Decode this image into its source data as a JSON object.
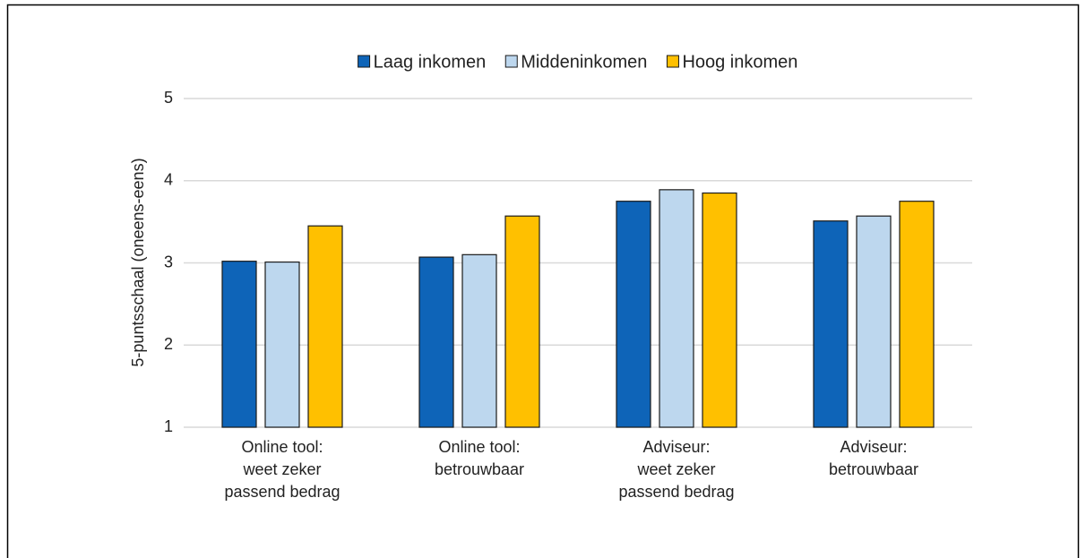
{
  "chart_data": {
    "type": "bar",
    "categories": [
      "Online tool:\nweet zeker\npassend bedrag",
      "Online tool:\nbetrouwbaar",
      "Adviseur:\nweet zeker\npassend bedrag",
      "Adviseur:\nbetrouwbaar"
    ],
    "series": [
      {
        "name": "Laag inkomen",
        "color": "#0e64b8",
        "values": [
          3.02,
          3.07,
          3.75,
          3.51
        ]
      },
      {
        "name": "Middeninkomen",
        "color": "#bdd7ee",
        "values": [
          3.01,
          3.1,
          3.89,
          3.57
        ]
      },
      {
        "name": "Hoog inkomen",
        "color": "#ffc000",
        "values": [
          3.45,
          3.57,
          3.85,
          3.75
        ]
      }
    ],
    "ylabel": "5-puntsschaal (oneens-eens)",
    "ylim": [
      1,
      5
    ],
    "yticks": [
      1,
      2,
      3,
      4,
      5
    ],
    "grid": true,
    "legend": "top"
  }
}
